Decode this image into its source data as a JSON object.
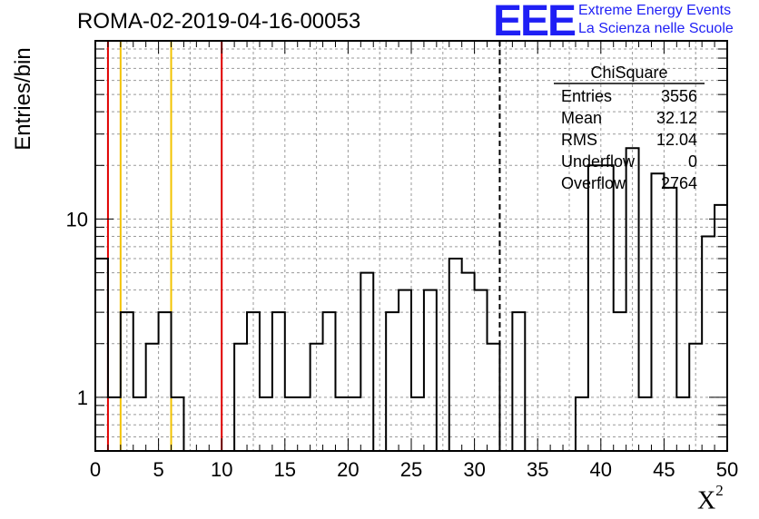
{
  "title": "ROMA-02-2019-04-16-00053",
  "logo": {
    "mark": "EEE",
    "line1": "Extreme Energy Events",
    "line2": "La Scienza nelle Scuole",
    "color": "#1f1ff5"
  },
  "stats": {
    "name": "ChiSquare",
    "rows": [
      {
        "label": "Entries",
        "value": "3556"
      },
      {
        "label": "Mean",
        "value": "32.12"
      },
      {
        "label": "RMS",
        "value": "12.04"
      },
      {
        "label": "Underflow",
        "value": "0"
      },
      {
        "label": "Overflow",
        "value": "2764"
      }
    ]
  },
  "chart_data": {
    "type": "bar",
    "style": "step-histogram",
    "xlabel_base": "X",
    "xlabel_sup": "2",
    "ylabel": "Entries/bin",
    "xlim": [
      0,
      50
    ],
    "ylim": [
      0.5,
      100
    ],
    "yscale": "log",
    "grid": true,
    "bin_width": 1,
    "x_ticks": [
      0,
      5,
      10,
      15,
      20,
      25,
      30,
      35,
      40,
      45,
      50
    ],
    "y_tick_labels": [
      1,
      10
    ],
    "bin_edges_start": 0,
    "bin_contents": [
      6,
      1,
      3,
      1,
      2,
      3,
      1,
      0.5,
      0.5,
      0.5,
      0.5,
      2,
      3,
      1,
      3,
      1,
      1,
      2,
      3,
      1,
      1,
      5,
      0.5,
      3,
      4,
      1,
      4,
      0.5,
      6,
      5,
      4,
      2,
      0.5,
      3,
      0.5,
      0.5,
      0.5,
      0,
      1,
      20,
      20,
      3,
      25,
      1,
      18,
      15,
      1,
      2,
      8,
      12
    ],
    "vertical_lines": [
      {
        "x": 1,
        "color": "#e00000",
        "style": "solid"
      },
      {
        "x": 2,
        "color": "#f2c200",
        "style": "solid"
      },
      {
        "x": 6,
        "color": "#f2c200",
        "style": "solid"
      },
      {
        "x": 10,
        "color": "#e00000",
        "style": "solid"
      },
      {
        "x": 32,
        "color": "#000000",
        "style": "dashed"
      }
    ],
    "colors": {
      "histogram": "#000000",
      "grid": "#9a9a9a"
    }
  }
}
